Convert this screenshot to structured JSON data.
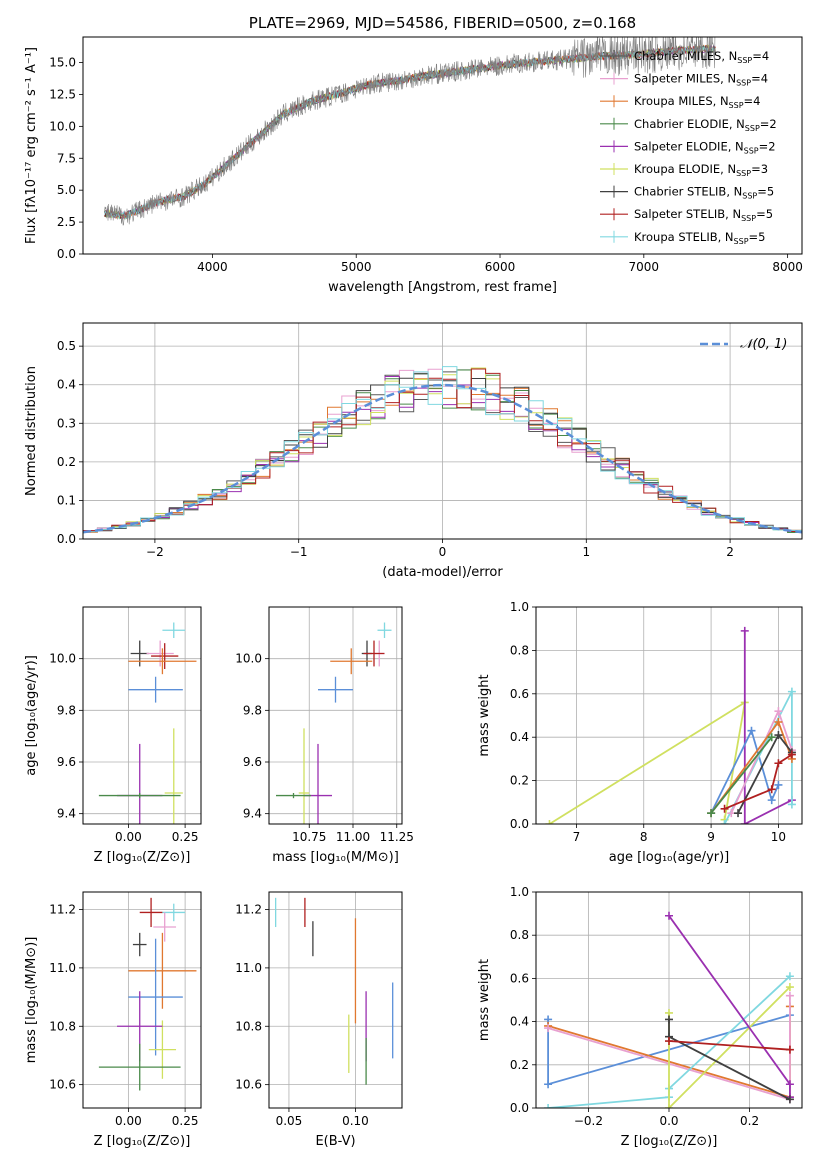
{
  "chart_data": [
    {
      "type": "line",
      "id": "spectrum",
      "title": "PLATE=2969, MJD=54586, FIBERID=0500, z=0.168",
      "xlabel": "wavelength [Angstrom, rest frame]",
      "ylabel": "Flux [fλ10⁻¹⁷ erg cm⁻² s⁻¹ A⁻¹]",
      "xlim": [
        3100,
        8100
      ],
      "ylim": [
        0,
        17
      ],
      "xticks": [
        "4000",
        "5000",
        "6000",
        "7000",
        "8000"
      ],
      "yticks": [
        "0.0",
        "2.5",
        "5.0",
        "7.5",
        "10.0",
        "12.5",
        "15.0"
      ],
      "legend_placement": "upper-right",
      "observed": {
        "color": "#808080",
        "x": [
          3250,
          3400,
          3600,
          3800,
          3950,
          4100,
          4300,
          4500,
          4700,
          4900,
          5100,
          5300,
          5500,
          5700,
          5900,
          6100,
          6300,
          6500,
          6700,
          6900,
          7100,
          7300,
          7500
        ],
        "y": [
          3.2,
          3.0,
          4.0,
          4.5,
          5.5,
          7.0,
          9.0,
          11.0,
          12.0,
          12.6,
          13.3,
          13.6,
          14.0,
          14.3,
          14.6,
          14.9,
          15.1,
          15.3,
          15.5,
          15.6,
          15.8,
          16.0,
          16.1
        ]
      },
      "series": [
        {
          "name": "Chabrier MILES, N_SSP=4",
          "color": "#5a5a5a"
        },
        {
          "name": "Salpeter MILES, N_SSP=4",
          "color": "#e8a0d0"
        },
        {
          "name": "Kroupa MILES, N_SSP=4",
          "color": "#e07830"
        },
        {
          "name": "Chabrier ELODIE, N_SSP=2",
          "color": "#4a8a4a"
        },
        {
          "name": "Salpeter ELODIE, N_SSP=2",
          "color": "#9a30b0"
        },
        {
          "name": "Kroupa ELODIE, N_SSP=3",
          "color": "#d0e060"
        },
        {
          "name": "Chabrier STELIB, N_SSP=5",
          "color": "#404040"
        },
        {
          "name": "Salpeter STELIB, N_SSP=5",
          "color": "#b02020"
        },
        {
          "name": "Kroupa STELIB, N_SSP=5",
          "color": "#80d8e0"
        }
      ]
    },
    {
      "type": "histogram",
      "id": "residuals",
      "xlabel": "(data-model)/error",
      "ylabel": "Normed distribution",
      "xlim": [
        -2.5,
        2.5
      ],
      "ylim": [
        0,
        0.56
      ],
      "xticks": [
        "−2",
        "−1",
        "0",
        "1",
        "2"
      ],
      "yticks": [
        "0.0",
        "0.1",
        "0.2",
        "0.3",
        "0.4",
        "0.5"
      ],
      "grid": true,
      "legend_placement": "upper-right",
      "gaussian_label": "𝒩(0, 1)",
      "gaussian_color": "#5b8fd8"
    },
    {
      "type": "scatter",
      "id": "age-vs-Z",
      "xlabel": "Z [log₁₀(Z/Z⊙)]",
      "ylabel": "age  [log₁₀(age/yr)]",
      "xlim": [
        -0.2,
        0.32
      ],
      "ylim": [
        9.36,
        10.2
      ],
      "xticks": [
        "0.00",
        "0.25"
      ],
      "yticks": [
        "9.4",
        "9.6",
        "9.8",
        "10.0"
      ],
      "grid": true,
      "points": [
        {
          "x": 0.2,
          "y": 10.11,
          "xerr": 0.05,
          "yerr": 0.03,
          "color": "#80d8e0"
        },
        {
          "x": 0.05,
          "y": 10.02,
          "xerr": 0.04,
          "yerr": 0.05,
          "color": "#404040"
        },
        {
          "x": 0.14,
          "y": 10.02,
          "xerr": 0.06,
          "yerr": 0.05,
          "color": "#e8a0d0"
        },
        {
          "x": 0.16,
          "y": 10.01,
          "xerr": 0.06,
          "yerr": 0.05,
          "color": "#b02020"
        },
        {
          "x": 0.15,
          "y": 9.99,
          "xerr": 0.15,
          "yerr": 0.05,
          "color": "#e07830"
        },
        {
          "x": 0.12,
          "y": 9.88,
          "xerr": 0.12,
          "yerr": 0.05,
          "color": "#5b8fd8"
        },
        {
          "x": 0.2,
          "y": 9.48,
          "xerr": 0.04,
          "yerr": 0.25,
          "color": "#d0e060"
        },
        {
          "x": 0.05,
          "y": 9.47,
          "xerr": 0.1,
          "yerr": 0.2,
          "color": "#9a30b0"
        },
        {
          "x": 0.05,
          "y": 9.47,
          "xerr": 0.18,
          "yerr": 0.01,
          "color": "#4a8a4a"
        }
      ]
    },
    {
      "type": "scatter",
      "id": "age-vs-mass",
      "xlabel": "mass [log₁₀(M/M⊙)]",
      "xlim": [
        10.52,
        11.28
      ],
      "ylim": [
        9.36,
        10.2
      ],
      "xticks": [
        "10.75",
        "11.00",
        "11.25"
      ],
      "yticks": [
        "9.4",
        "9.6",
        "9.8",
        "10.0"
      ],
      "grid": true,
      "points": [
        {
          "x": 11.18,
          "y": 10.11,
          "xerr": 0.04,
          "yerr": 0.03,
          "color": "#80d8e0"
        },
        {
          "x": 11.08,
          "y": 10.02,
          "xerr": 0.03,
          "yerr": 0.05,
          "color": "#404040"
        },
        {
          "x": 11.15,
          "y": 10.02,
          "xerr": 0.03,
          "yerr": 0.05,
          "color": "#e8a0d0"
        },
        {
          "x": 11.12,
          "y": 10.02,
          "xerr": 0.06,
          "yerr": 0.05,
          "color": "#b02020"
        },
        {
          "x": 10.99,
          "y": 9.99,
          "xerr": 0.12,
          "yerr": 0.05,
          "color": "#e07830"
        },
        {
          "x": 10.9,
          "y": 9.88,
          "xerr": 0.1,
          "yerr": 0.05,
          "color": "#5b8fd8"
        },
        {
          "x": 10.72,
          "y": 9.48,
          "xerr": 0.03,
          "yerr": 0.25,
          "color": "#d0e060"
        },
        {
          "x": 10.8,
          "y": 9.47,
          "xerr": 0.08,
          "yerr": 0.2,
          "color": "#9a30b0"
        },
        {
          "x": 10.66,
          "y": 9.47,
          "xerr": 0.1,
          "yerr": 0.01,
          "color": "#4a8a4a"
        }
      ]
    },
    {
      "type": "line",
      "id": "weight-vs-age",
      "xlabel": "age  [log₁₀(age/yr)]",
      "ylabel": "mass weight",
      "xlim": [
        6.4,
        10.35
      ],
      "ylim": [
        0,
        1
      ],
      "xticks": [
        "7",
        "8",
        "9",
        "10"
      ],
      "yticks": [
        "0.0",
        "0.2",
        "0.4",
        "0.6",
        "0.8",
        "1.0"
      ],
      "grid": true,
      "series": [
        {
          "color": "#d0e060",
          "x": [
            6.6,
            9.5,
            9.2
          ],
          "y": [
            0.0,
            0.56,
            0.02
          ]
        },
        {
          "color": "#9a30b0",
          "x": [
            9.5,
            9.5,
            10.2
          ],
          "y": [
            0.89,
            0.0,
            0.11
          ]
        },
        {
          "color": "#5b8fd8",
          "x": [
            9.0,
            9.6,
            9.9,
            10.0
          ],
          "y": [
            0.05,
            0.43,
            0.11,
            0.18
          ]
        },
        {
          "color": "#80d8e0",
          "x": [
            9.2,
            10.2,
            10.2
          ],
          "y": [
            0.0,
            0.61,
            0.09
          ]
        },
        {
          "color": "#e8a0d0",
          "x": [
            9.3,
            10.0,
            10.2
          ],
          "y": [
            0.05,
            0.52,
            0.34
          ]
        },
        {
          "color": "#e07830",
          "x": [
            9.0,
            10.0,
            10.2
          ],
          "y": [
            0.05,
            0.47,
            0.3
          ]
        },
        {
          "color": "#404040",
          "x": [
            9.4,
            10.0,
            10.2
          ],
          "y": [
            0.05,
            0.41,
            0.33
          ]
        },
        {
          "color": "#b02020",
          "x": [
            9.2,
            9.9,
            10.0,
            10.2
          ],
          "y": [
            0.07,
            0.16,
            0.28,
            0.32
          ]
        },
        {
          "color": "#4a8a4a",
          "x": [
            9.0,
            9.9
          ],
          "y": [
            0.05,
            0.4
          ]
        }
      ]
    },
    {
      "type": "scatter",
      "id": "mass-vs-Z",
      "xlabel": "Z [log₁₀(Z/Z⊙)]",
      "ylabel": "mass [log₁₀(M/M⊙)]",
      "xlim": [
        -0.2,
        0.32
      ],
      "ylim": [
        10.52,
        11.26
      ],
      "xticks": [
        "0.00",
        "0.25"
      ],
      "yticks": [
        "10.6",
        "10.8",
        "11.0",
        "11.2"
      ],
      "grid": true,
      "points": [
        {
          "x": 0.2,
          "y": 11.19,
          "xerr": 0.05,
          "yerr": 0.03,
          "color": "#80d8e0"
        },
        {
          "x": 0.1,
          "y": 11.19,
          "xerr": 0.05,
          "yerr": 0.05,
          "color": "#b02020"
        },
        {
          "x": 0.16,
          "y": 11.14,
          "xerr": 0.05,
          "yerr": 0.05,
          "color": "#e8a0d0"
        },
        {
          "x": 0.05,
          "y": 11.08,
          "xerr": 0.03,
          "yerr": 0.04,
          "color": "#404040"
        },
        {
          "x": 0.15,
          "y": 10.99,
          "xerr": 0.15,
          "yerr": 0.13,
          "color": "#e07830"
        },
        {
          "x": 0.12,
          "y": 10.9,
          "xerr": 0.12,
          "yerr": 0.2,
          "color": "#5b8fd8"
        },
        {
          "x": 0.15,
          "y": 10.72,
          "xerr": 0.06,
          "yerr": 0.1,
          "color": "#d0e060"
        },
        {
          "x": 0.05,
          "y": 10.8,
          "xerr": 0.1,
          "yerr": 0.12,
          "color": "#9a30b0"
        },
        {
          "x": 0.05,
          "y": 10.66,
          "xerr": 0.18,
          "yerr": 0.08,
          "color": "#4a8a4a"
        }
      ]
    },
    {
      "type": "scatter",
      "id": "mass-vs-ebv",
      "xlabel": "E(B-V)",
      "xlim": [
        0.035,
        0.135
      ],
      "ylim": [
        10.52,
        11.26
      ],
      "xticks": [
        "0.05",
        "0.10"
      ],
      "yticks": [
        "10.6",
        "10.8",
        "11.0",
        "11.2"
      ],
      "grid": true,
      "points": [
        {
          "x": 0.04,
          "y": 11.19,
          "xerr": 0,
          "yerr": 0.05,
          "color": "#80d8e0"
        },
        {
          "x": 0.062,
          "y": 11.19,
          "xerr": 0,
          "yerr": 0.05,
          "color": "#b02020"
        },
        {
          "x": 0.068,
          "y": 11.1,
          "xerr": 0,
          "yerr": 0.06,
          "color": "#404040"
        },
        {
          "x": 0.1,
          "y": 10.99,
          "xerr": 0,
          "yerr": 0.18,
          "color": "#e07830"
        },
        {
          "x": 0.095,
          "y": 10.74,
          "xerr": 0,
          "yerr": 0.1,
          "color": "#d0e060"
        },
        {
          "x": 0.108,
          "y": 10.8,
          "xerr": 0,
          "yerr": 0.12,
          "color": "#9a30b0"
        },
        {
          "x": 0.108,
          "y": 10.68,
          "xerr": 0,
          "yerr": 0.08,
          "color": "#4a8a4a"
        },
        {
          "x": 0.128,
          "y": 10.82,
          "xerr": 0,
          "yerr": 0.13,
          "color": "#5b8fd8"
        }
      ]
    },
    {
      "type": "line",
      "id": "weight-vs-Z",
      "xlabel": "Z [log₁₀(Z/Z⊙)]",
      "ylabel": "mass weight",
      "xlim": [
        -0.33,
        0.33
      ],
      "ylim": [
        0,
        1
      ],
      "xticks": [
        "−0.2",
        "0.0",
        "0.2"
      ],
      "yticks": [
        "0.0",
        "0.2",
        "0.4",
        "0.6",
        "0.8",
        "1.0"
      ],
      "grid": true,
      "series": [
        {
          "color": "#5b8fd8",
          "x": [
            -0.3,
            -0.3,
            0.3
          ],
          "y": [
            0.41,
            0.11,
            0.43
          ]
        },
        {
          "color": "#e07830",
          "x": [
            -0.3,
            0.3,
            0.3
          ],
          "y": [
            0.38,
            0.05,
            0.47
          ]
        },
        {
          "color": "#e8a0d0",
          "x": [
            -0.3,
            0.3,
            0.3
          ],
          "y": [
            0.37,
            0.04,
            0.52
          ]
        },
        {
          "color": "#80d8e0",
          "x": [
            -0.3,
            0.0,
            0.0,
            0.3
          ],
          "y": [
            0.0,
            0.05,
            0.09,
            0.61
          ]
        },
        {
          "color": "#d0e060",
          "x": [
            0.0,
            0.0,
            0.3
          ],
          "y": [
            0.44,
            0.0,
            0.56
          ]
        },
        {
          "color": "#9a30b0",
          "x": [
            0.0,
            0.3,
            0.3
          ],
          "y": [
            0.89,
            0.11,
            0.05
          ]
        },
        {
          "color": "#404040",
          "x": [
            0.0,
            0.0,
            0.3
          ],
          "y": [
            0.41,
            0.33,
            0.04
          ]
        },
        {
          "color": "#b02020",
          "x": [
            0.0,
            0.3
          ],
          "y": [
            0.31,
            0.27
          ]
        }
      ]
    }
  ]
}
